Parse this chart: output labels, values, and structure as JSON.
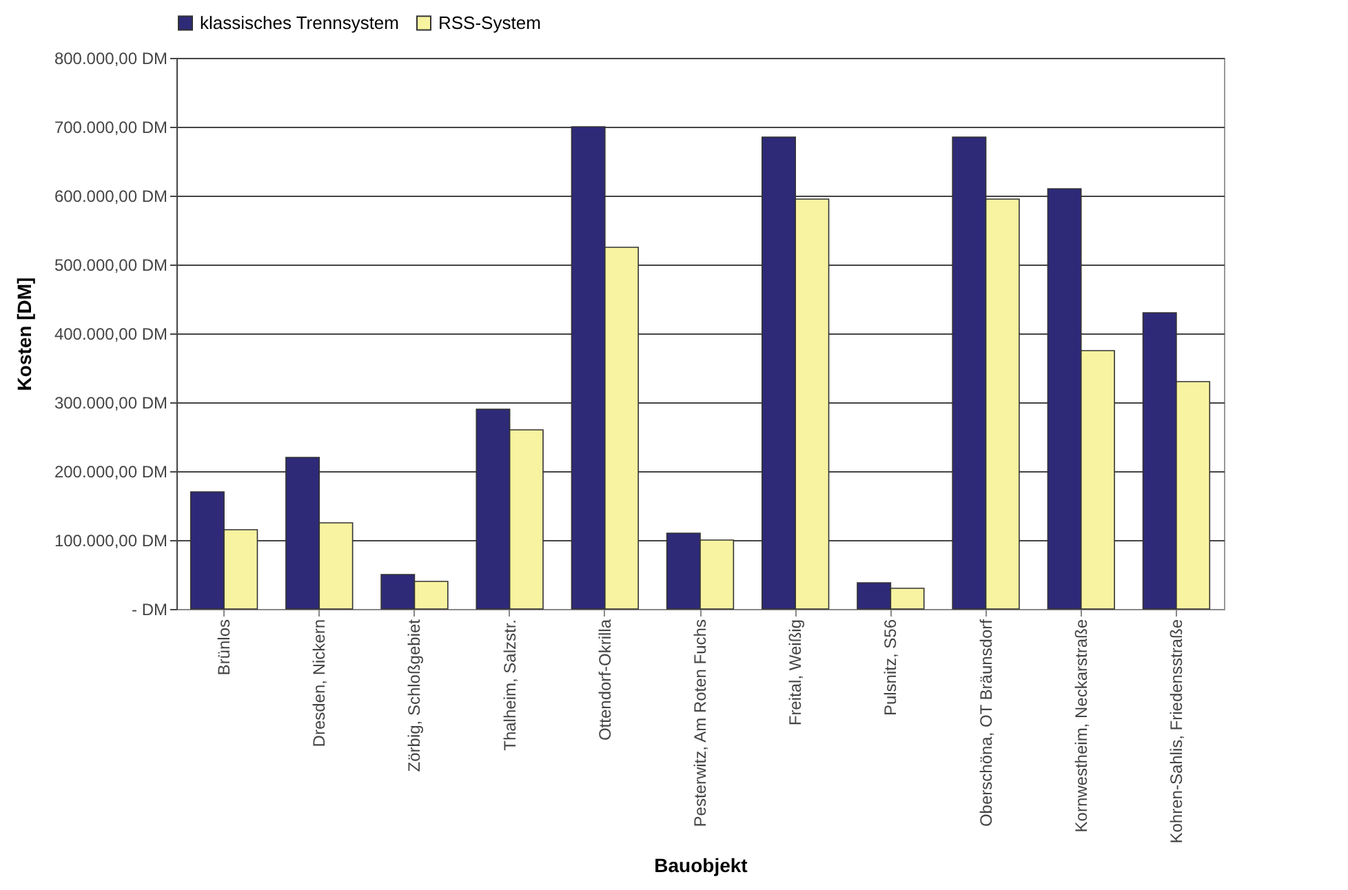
{
  "chart_data": {
    "type": "bar",
    "xlabel": "Bauobjekt",
    "ylabel": "Kosten [DM]",
    "categories": [
      "Brünlos",
      "Dresden, Nickern",
      "Zörbig, Schloßgebiet",
      "Thalheim, Salzstr.",
      "Ottendorf-Okrilla",
      "Pesterwitz, Am Roten Fuchs",
      "Freital, Weißig",
      "Pulsnitz, S56",
      "Oberschöna, OT Bräunsdorf",
      "Kornwestheim, Neckarstraße",
      "Kohren-Sahlis, Friedensstraße"
    ],
    "series": [
      {
        "name": "klassisches Trennsystem",
        "color": "#2e2a78",
        "values": [
          170000,
          220000,
          50000,
          290000,
          700000,
          110000,
          685000,
          38000,
          685000,
          610000,
          430000
        ]
      },
      {
        "name": "RSS-System",
        "color": "#f8f3a0",
        "values": [
          115000,
          125000,
          40000,
          260000,
          525000,
          100000,
          595000,
          30000,
          595000,
          375000,
          330000
        ]
      }
    ],
    "ylim": [
      0,
      800000
    ],
    "yticks": [
      {
        "value": 0,
        "label": "-   DM"
      },
      {
        "value": 100000,
        "label": "100.000,00 DM"
      },
      {
        "value": 200000,
        "label": "200.000,00 DM"
      },
      {
        "value": 300000,
        "label": "300.000,00 DM"
      },
      {
        "value": 400000,
        "label": "400.000,00 DM"
      },
      {
        "value": 500000,
        "label": "500.000,00 DM"
      },
      {
        "value": 600000,
        "label": "600.000,00 DM"
      },
      {
        "value": 700000,
        "label": "700.000,00 DM"
      },
      {
        "value": 800000,
        "label": "800.000,00 DM"
      }
    ],
    "grid": "y",
    "legend": "top"
  }
}
